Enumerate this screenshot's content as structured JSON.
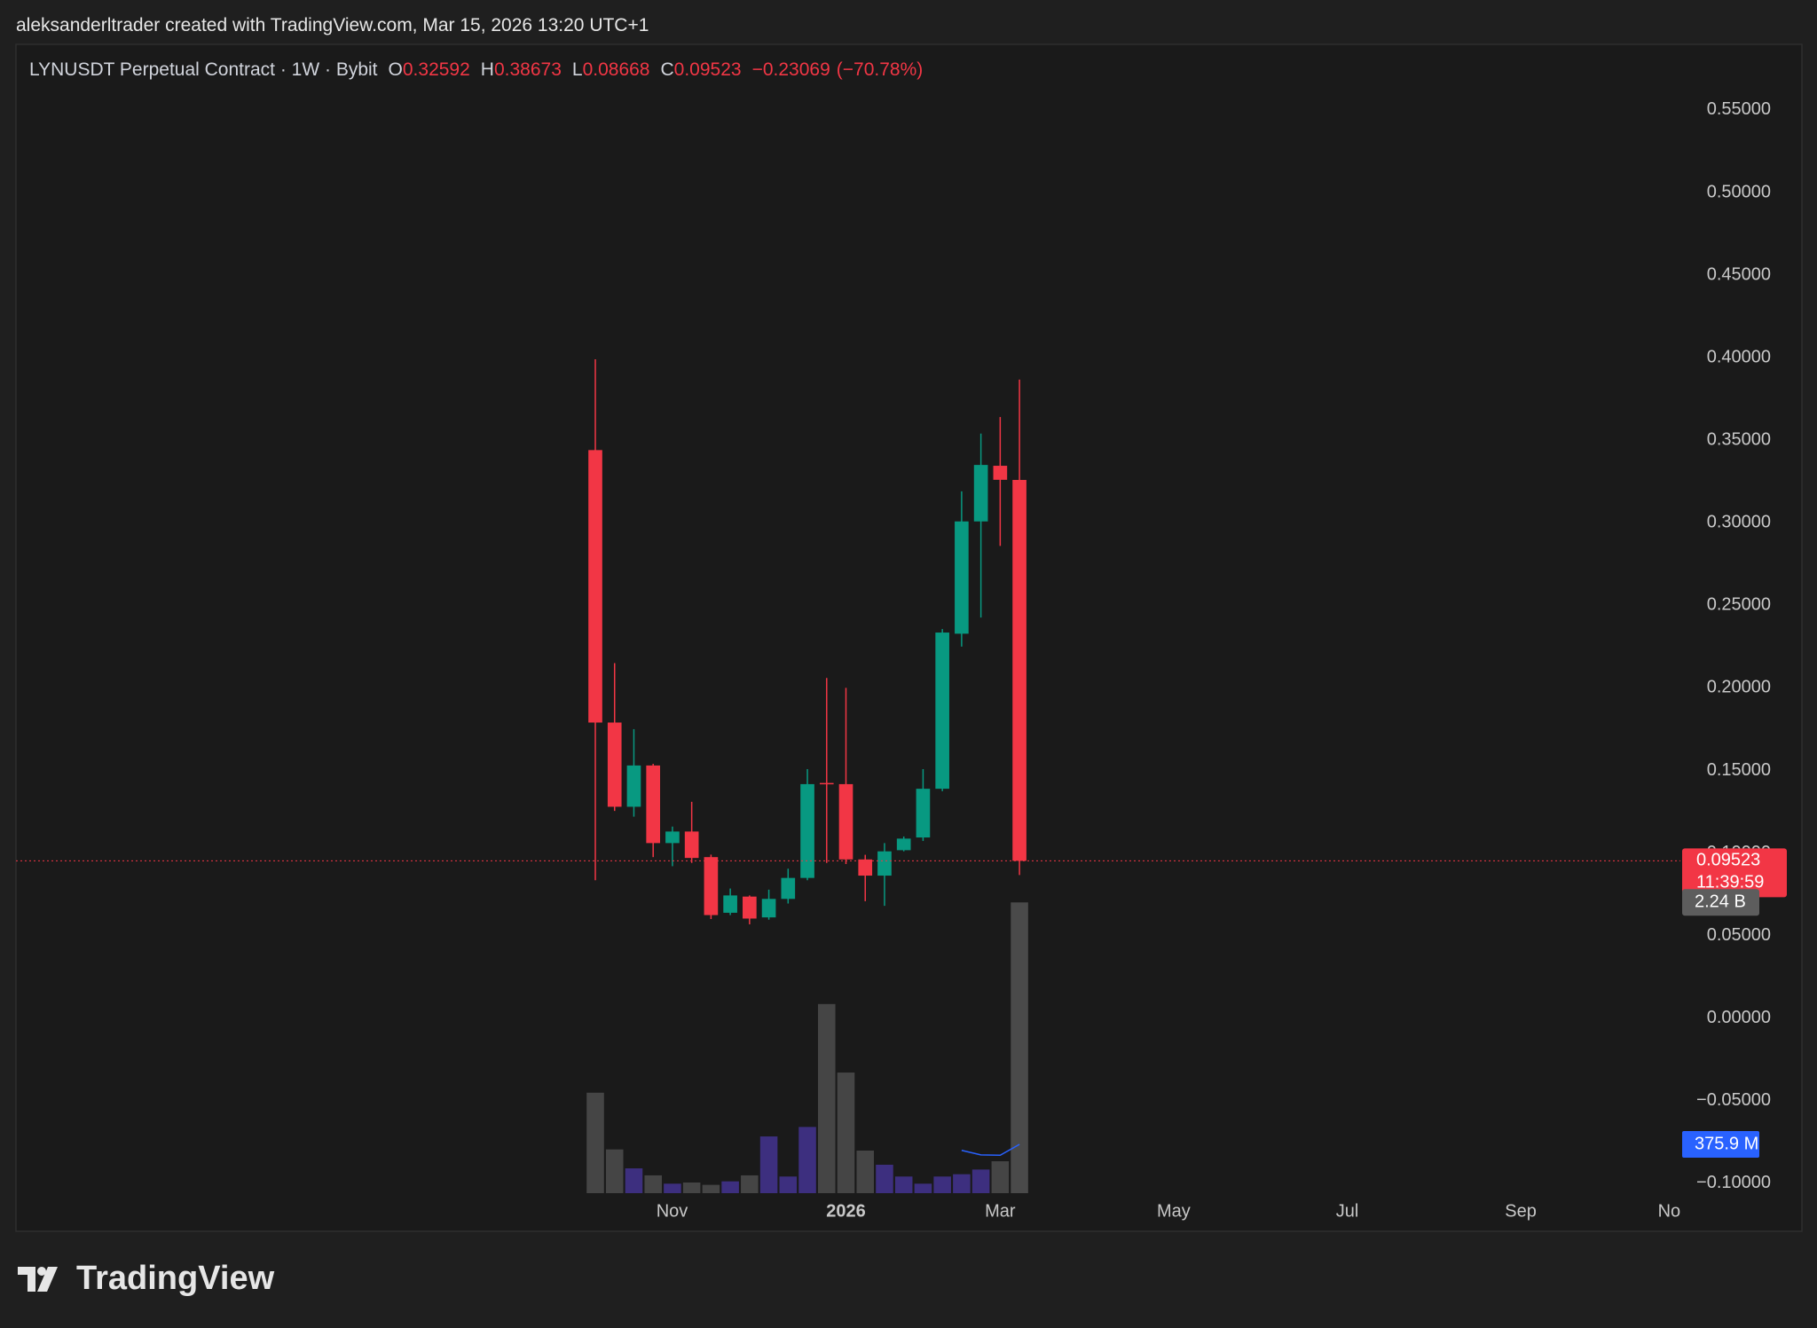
{
  "header": "aleksanderltrader created with TradingView.com, Mar 15, 2026 13:20 UTC+1",
  "chart_data": {
    "type": "candlestick",
    "symbol": "LYNUSDT Perpetual Contract · 1W · Bybit",
    "ohlc_letters": [
      "O",
      "H",
      "L",
      "C"
    ],
    "open": [
      0.344,
      0.179,
      0.128,
      0.153,
      0.106,
      0.113,
      0.0975,
      0.0638,
      0.0736,
      0.061,
      0.0722,
      0.0849,
      0.1424,
      0.1417,
      0.0961,
      0.0863,
      0.1017,
      0.1094,
      0.1389,
      0.2328,
      0.3008,
      0.3345,
      0.32592
    ],
    "high": [
      0.399,
      0.215,
      0.175,
      0.154,
      0.116,
      0.131,
      0.099,
      0.0785,
      0.0743,
      0.0778,
      0.0905,
      0.1508,
      0.206,
      0.2,
      0.0989,
      0.106,
      0.11,
      0.1508,
      0.2356,
      0.319,
      0.354,
      0.364,
      0.38673
    ],
    "low": [
      0.0835,
      0.1255,
      0.122,
      0.0975,
      0.092,
      0.094,
      0.06,
      0.0624,
      0.0568,
      0.0596,
      0.0694,
      0.0835,
      0.094,
      0.0933,
      0.0708,
      0.068,
      0.101,
      0.1073,
      0.1374,
      0.225,
      0.2426,
      0.286,
      0.08668
    ],
    "close": [
      0.179,
      0.128,
      0.153,
      0.106,
      0.113,
      0.097,
      0.0624,
      0.0743,
      0.0603,
      0.0722,
      0.0849,
      0.1417,
      0.1417,
      0.0961,
      0.0863,
      0.101,
      0.1087,
      0.1389,
      0.2335,
      0.3008,
      0.335,
      0.326,
      0.09523
    ],
    "change": {
      "value": -0.23069,
      "label": "−0.23069"
    },
    "change_percent": {
      "value": -70.78,
      "label": "(−70.78%)"
    },
    "up_color": "#089981",
    "down_color": "#f23645",
    "grid": false,
    "xlim": [
      -30.05,
      56.28
    ],
    "xticks": [
      {
        "value": 3.98,
        "label": "Nov"
      },
      {
        "value": 13.0,
        "label": "2026",
        "bold": true
      },
      {
        "value": 21.0,
        "label": "Mar"
      },
      {
        "value": 30.0,
        "label": "May"
      },
      {
        "value": 39.0,
        "label": "Jul"
      },
      {
        "value": 48.0,
        "label": "Sep"
      },
      {
        "value": 55.7,
        "label": "No"
      }
    ],
    "ylim": [
      -0.106,
      0.5897
    ],
    "yticks": [
      {
        "value": -0.1,
        "label": "−0.10000"
      },
      {
        "value": -0.05,
        "label": "−0.05000"
      },
      {
        "value": 0,
        "label": "0.00000"
      },
      {
        "value": 0.05,
        "label": "0.05000"
      },
      {
        "value": 0.1,
        "label": "0.10000"
      },
      {
        "value": 0.15,
        "label": "0.15000"
      },
      {
        "value": 0.2,
        "label": "0.20000"
      },
      {
        "value": 0.25,
        "label": "0.25000"
      },
      {
        "value": 0.3,
        "label": "0.30000"
      },
      {
        "value": 0.35,
        "label": "0.35000"
      },
      {
        "value": 0.4,
        "label": "0.40000"
      },
      {
        "value": 0.45,
        "label": "0.45000"
      },
      {
        "value": 0.5,
        "label": "0.50000"
      },
      {
        "value": 0.55,
        "label": "0.55000"
      }
    ],
    "last_price_line": true,
    "countdown": "11:39:59",
    "volume": {
      "values": [
        774000000,
        337000000,
        191000000,
        137000000,
        73000000,
        82000000,
        64000000,
        91000000,
        137000000,
        437000000,
        128000000,
        510000000,
        1457000000,
        929000000,
        328000000,
        219000000,
        128000000,
        73000000,
        128000000,
        146000000,
        182000000,
        246000000,
        2240000000
      ],
      "colors": [
        "#454545",
        "#454545",
        "#3d2f7f",
        "#454545",
        "#3d2f7f",
        "#454545",
        "#454545",
        "#3d2f7f",
        "#454545",
        "#3d2f7f",
        "#3d2f7f",
        "#3d2f7f",
        "#454545",
        "#454545",
        "#454545",
        "#3d2f7f",
        "#3d2f7f",
        "#3d2f7f",
        "#3d2f7f",
        "#3d2f7f",
        "#3d2f7f",
        "#454545",
        "#4a4a4a"
      ],
      "last_label": "2.24 B",
      "label_color": "#5d5d5d",
      "ylim": [
        0,
        8850000000
      ],
      "ma": {
        "values": [
          null,
          null,
          null,
          null,
          null,
          null,
          null,
          null,
          null,
          null,
          null,
          null,
          null,
          null,
          null,
          null,
          null,
          null,
          null,
          330000000,
          295000000,
          292000000,
          375900000
        ],
        "color": "#2962ff",
        "last_label": "375.9 M"
      }
    }
  },
  "footer": {
    "brand": "TradingView"
  }
}
